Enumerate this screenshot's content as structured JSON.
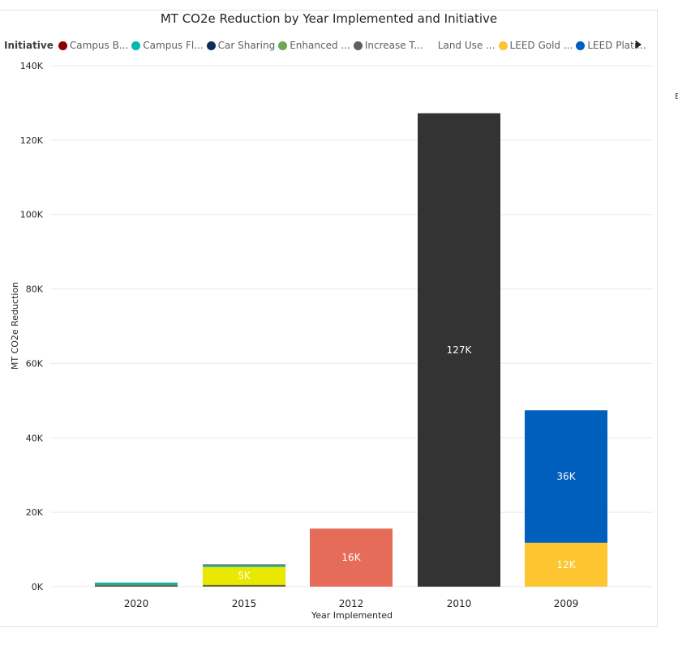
{
  "chart_data": {
    "type": "bar",
    "stacked": true,
    "title": "MT CO2e Reduction by Year Implemented and Initiative",
    "xlabel": "Year Implemented",
    "ylabel": "MT CO2e Reduction",
    "ylim": [
      0,
      140000
    ],
    "yticks": [
      0,
      20000,
      40000,
      60000,
      80000,
      100000,
      120000,
      140000
    ],
    "ytick_labels": [
      "0K",
      "20K",
      "40K",
      "60K",
      "80K",
      "100K",
      "120K",
      "140K"
    ],
    "grid": true,
    "legend_title": "Initiative",
    "legend_placement": "top",
    "legend": [
      {
        "label": "Campus B...",
        "color": "#8b0000"
      },
      {
        "label": "Campus Fl...",
        "color": "#01b8aa"
      },
      {
        "label": "Car Sharing",
        "color": "#0e2f55"
      },
      {
        "label": "Enhanced ...",
        "color": "#6fa84f"
      },
      {
        "label": "Increase T...",
        "color": "#5f5f5f"
      },
      {
        "label": "Land Use ...",
        "color": ""
      },
      {
        "label": "LEED Gold ...",
        "color": "#fdc52f"
      },
      {
        "label": "LEED Plati...",
        "color": "#005ebd"
      }
    ],
    "categories": [
      "2020",
      "2015",
      "2012",
      "2010",
      "2009"
    ],
    "stacks": [
      {
        "category": "2020",
        "segments": [
          {
            "value": 400,
            "color": "#8b3a1f",
            "label": ""
          },
          {
            "value": 700,
            "color": "#01b8aa",
            "label": ""
          }
        ]
      },
      {
        "category": "2015",
        "segments": [
          {
            "value": 500,
            "color": "#6b6b1f",
            "label": ""
          },
          {
            "value": 4800,
            "color": "#e8e800",
            "label": "5K"
          },
          {
            "value": 400,
            "color": "#01b8aa",
            "label": ""
          },
          {
            "value": 300,
            "color": "#5f5f5f",
            "label": ""
          }
        ]
      },
      {
        "category": "2012",
        "segments": [
          {
            "value": 15600,
            "color": "#e66c5a",
            "label": "16K"
          }
        ]
      },
      {
        "category": "2010",
        "segments": [
          {
            "value": 127200,
            "color": "#333333",
            "label": "127K"
          }
        ]
      },
      {
        "category": "2009",
        "segments": [
          {
            "value": 11800,
            "color": "#fdc52f",
            "label": "12K"
          },
          {
            "value": 35600,
            "color": "#005ebd",
            "label": "36K"
          }
        ]
      }
    ]
  },
  "side_mark": "E"
}
